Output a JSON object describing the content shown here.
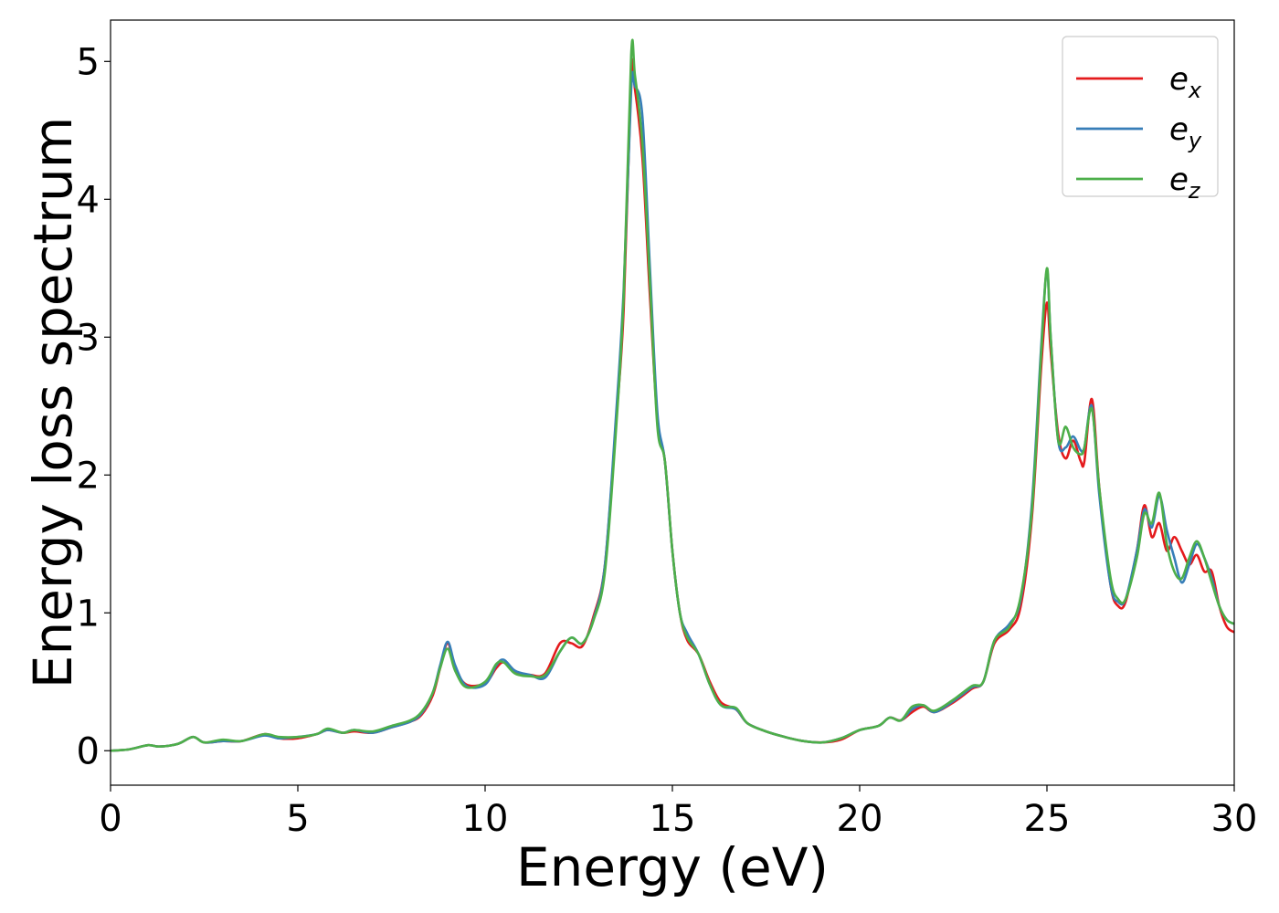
{
  "chart_data": {
    "type": "line",
    "title": "",
    "xlabel": "Energy (eV)",
    "ylabel": "Energy loss spectrum",
    "xlim": [
      0,
      30
    ],
    "ylim": [
      -0.25,
      5.3
    ],
    "xticks": [
      0,
      5,
      10,
      15,
      20,
      25,
      30
    ],
    "yticks": [
      0,
      1,
      2,
      3,
      4,
      5
    ],
    "grid": false,
    "legend_position": "top-right",
    "series": [
      {
        "name": "e_x",
        "legend_base": "e",
        "legend_sub": "x",
        "color": "#e41a1c",
        "points": [
          [
            0,
            0
          ],
          [
            0.5,
            0.01
          ],
          [
            1,
            0.04
          ],
          [
            1.3,
            0.03
          ],
          [
            1.8,
            0.05
          ],
          [
            2.2,
            0.1
          ],
          [
            2.5,
            0.06
          ],
          [
            3,
            0.07
          ],
          [
            3.5,
            0.07
          ],
          [
            4.1,
            0.12
          ],
          [
            4.5,
            0.09
          ],
          [
            5,
            0.09
          ],
          [
            5.5,
            0.12
          ],
          [
            5.8,
            0.15
          ],
          [
            6.2,
            0.13
          ],
          [
            6.5,
            0.14
          ],
          [
            7,
            0.13
          ],
          [
            7.5,
            0.17
          ],
          [
            8,
            0.21
          ],
          [
            8.3,
            0.26
          ],
          [
            8.6,
            0.4
          ],
          [
            8.8,
            0.6
          ],
          [
            9.0,
            0.78
          ],
          [
            9.2,
            0.6
          ],
          [
            9.5,
            0.48
          ],
          [
            10,
            0.49
          ],
          [
            10.3,
            0.6
          ],
          [
            10.5,
            0.64
          ],
          [
            10.8,
            0.57
          ],
          [
            11.2,
            0.55
          ],
          [
            11.6,
            0.56
          ],
          [
            12,
            0.78
          ],
          [
            12.3,
            0.78
          ],
          [
            12.6,
            0.76
          ],
          [
            12.9,
            0.98
          ],
          [
            13.2,
            1.35
          ],
          [
            13.5,
            2.4
          ],
          [
            13.7,
            3.2
          ],
          [
            13.9,
            4.9
          ],
          [
            14.0,
            4.8
          ],
          [
            14.2,
            4.3
          ],
          [
            14.4,
            3.3
          ],
          [
            14.6,
            2.4
          ],
          [
            14.8,
            2.1
          ],
          [
            15.0,
            1.45
          ],
          [
            15.2,
            1.0
          ],
          [
            15.4,
            0.8
          ],
          [
            15.7,
            0.7
          ],
          [
            16,
            0.5
          ],
          [
            16.3,
            0.35
          ],
          [
            16.7,
            0.3
          ],
          [
            17,
            0.2
          ],
          [
            17.5,
            0.14
          ],
          [
            18,
            0.1
          ],
          [
            18.5,
            0.07
          ],
          [
            19,
            0.06
          ],
          [
            19.5,
            0.08
          ],
          [
            20,
            0.15
          ],
          [
            20.5,
            0.18
          ],
          [
            20.8,
            0.24
          ],
          [
            21.1,
            0.22
          ],
          [
            21.4,
            0.28
          ],
          [
            21.7,
            0.32
          ],
          [
            22,
            0.28
          ],
          [
            22.5,
            0.35
          ],
          [
            23,
            0.45
          ],
          [
            23.3,
            0.5
          ],
          [
            23.6,
            0.78
          ],
          [
            24,
            0.88
          ],
          [
            24.3,
            1.05
          ],
          [
            24.6,
            1.7
          ],
          [
            24.85,
            2.8
          ],
          [
            25.0,
            3.25
          ],
          [
            25.1,
            2.9
          ],
          [
            25.3,
            2.3
          ],
          [
            25.5,
            2.12
          ],
          [
            25.7,
            2.25
          ],
          [
            25.9,
            2.1
          ],
          [
            26.0,
            2.1
          ],
          [
            26.2,
            2.55
          ],
          [
            26.4,
            1.9
          ],
          [
            26.7,
            1.2
          ],
          [
            26.9,
            1.05
          ],
          [
            27.1,
            1.08
          ],
          [
            27.4,
            1.45
          ],
          [
            27.6,
            1.78
          ],
          [
            27.8,
            1.55
          ],
          [
            28.0,
            1.65
          ],
          [
            28.2,
            1.45
          ],
          [
            28.4,
            1.55
          ],
          [
            28.6,
            1.45
          ],
          [
            28.8,
            1.35
          ],
          [
            29.0,
            1.42
          ],
          [
            29.2,
            1.3
          ],
          [
            29.4,
            1.3
          ],
          [
            29.6,
            1.05
          ],
          [
            29.8,
            0.9
          ],
          [
            30,
            0.86
          ]
        ]
      },
      {
        "name": "e_y",
        "legend_base": "e",
        "legend_sub": "y",
        "color": "#377eb8",
        "points": [
          [
            0,
            0
          ],
          [
            0.5,
            0.01
          ],
          [
            1,
            0.04
          ],
          [
            1.3,
            0.03
          ],
          [
            1.8,
            0.05
          ],
          [
            2.2,
            0.1
          ],
          [
            2.5,
            0.06
          ],
          [
            3,
            0.07
          ],
          [
            3.5,
            0.07
          ],
          [
            4.1,
            0.11
          ],
          [
            4.5,
            0.09
          ],
          [
            5,
            0.1
          ],
          [
            5.5,
            0.12
          ],
          [
            5.8,
            0.15
          ],
          [
            6.2,
            0.13
          ],
          [
            6.5,
            0.15
          ],
          [
            7,
            0.13
          ],
          [
            7.5,
            0.17
          ],
          [
            8,
            0.21
          ],
          [
            8.3,
            0.27
          ],
          [
            8.6,
            0.42
          ],
          [
            8.8,
            0.62
          ],
          [
            9.0,
            0.79
          ],
          [
            9.2,
            0.62
          ],
          [
            9.5,
            0.47
          ],
          [
            10,
            0.48
          ],
          [
            10.3,
            0.62
          ],
          [
            10.5,
            0.66
          ],
          [
            10.8,
            0.58
          ],
          [
            11.2,
            0.55
          ],
          [
            11.6,
            0.53
          ],
          [
            12,
            0.72
          ],
          [
            12.3,
            0.82
          ],
          [
            12.6,
            0.78
          ],
          [
            12.9,
            0.96
          ],
          [
            13.2,
            1.35
          ],
          [
            13.5,
            2.45
          ],
          [
            13.7,
            3.35
          ],
          [
            13.9,
            4.8
          ],
          [
            14.0,
            4.82
          ],
          [
            14.2,
            4.6
          ],
          [
            14.4,
            3.5
          ],
          [
            14.6,
            2.45
          ],
          [
            14.8,
            2.1
          ],
          [
            15.0,
            1.45
          ],
          [
            15.2,
            1.0
          ],
          [
            15.4,
            0.85
          ],
          [
            15.7,
            0.7
          ],
          [
            16,
            0.48
          ],
          [
            16.3,
            0.33
          ],
          [
            16.7,
            0.3
          ],
          [
            17,
            0.2
          ],
          [
            17.5,
            0.14
          ],
          [
            18,
            0.1
          ],
          [
            18.5,
            0.07
          ],
          [
            19,
            0.06
          ],
          [
            19.5,
            0.09
          ],
          [
            20,
            0.15
          ],
          [
            20.5,
            0.18
          ],
          [
            20.8,
            0.24
          ],
          [
            21.1,
            0.22
          ],
          [
            21.4,
            0.3
          ],
          [
            21.7,
            0.33
          ],
          [
            22,
            0.28
          ],
          [
            22.5,
            0.36
          ],
          [
            23,
            0.46
          ],
          [
            23.3,
            0.5
          ],
          [
            23.6,
            0.8
          ],
          [
            24,
            0.92
          ],
          [
            24.3,
            1.1
          ],
          [
            24.6,
            1.8
          ],
          [
            24.85,
            2.95
          ],
          [
            25.0,
            3.48
          ],
          [
            25.1,
            3.0
          ],
          [
            25.3,
            2.25
          ],
          [
            25.5,
            2.2
          ],
          [
            25.7,
            2.28
          ],
          [
            25.9,
            2.18
          ],
          [
            26.0,
            2.2
          ],
          [
            26.2,
            2.5
          ],
          [
            26.4,
            1.85
          ],
          [
            26.7,
            1.2
          ],
          [
            26.9,
            1.08
          ],
          [
            27.1,
            1.1
          ],
          [
            27.4,
            1.45
          ],
          [
            27.6,
            1.75
          ],
          [
            27.8,
            1.62
          ],
          [
            28.0,
            1.85
          ],
          [
            28.2,
            1.6
          ],
          [
            28.4,
            1.4
          ],
          [
            28.6,
            1.22
          ],
          [
            28.8,
            1.35
          ],
          [
            29.0,
            1.5
          ],
          [
            29.2,
            1.4
          ],
          [
            29.4,
            1.25
          ],
          [
            29.6,
            1.05
          ],
          [
            29.8,
            0.95
          ],
          [
            30,
            0.92
          ]
        ]
      },
      {
        "name": "e_z",
        "legend_base": "e",
        "legend_sub": "z",
        "color": "#4daf4a",
        "points": [
          [
            0,
            0
          ],
          [
            0.5,
            0.01
          ],
          [
            1,
            0.04
          ],
          [
            1.3,
            0.03
          ],
          [
            1.8,
            0.05
          ],
          [
            2.2,
            0.1
          ],
          [
            2.5,
            0.06
          ],
          [
            3,
            0.08
          ],
          [
            3.5,
            0.07
          ],
          [
            4.1,
            0.12
          ],
          [
            4.5,
            0.1
          ],
          [
            5,
            0.1
          ],
          [
            5.5,
            0.12
          ],
          [
            5.8,
            0.16
          ],
          [
            6.2,
            0.13
          ],
          [
            6.5,
            0.15
          ],
          [
            7,
            0.14
          ],
          [
            7.5,
            0.18
          ],
          [
            8,
            0.22
          ],
          [
            8.3,
            0.28
          ],
          [
            8.6,
            0.42
          ],
          [
            8.8,
            0.6
          ],
          [
            9.0,
            0.74
          ],
          [
            9.2,
            0.58
          ],
          [
            9.5,
            0.46
          ],
          [
            10,
            0.5
          ],
          [
            10.3,
            0.63
          ],
          [
            10.5,
            0.64
          ],
          [
            10.8,
            0.56
          ],
          [
            11.2,
            0.54
          ],
          [
            11.6,
            0.55
          ],
          [
            12,
            0.72
          ],
          [
            12.3,
            0.82
          ],
          [
            12.6,
            0.78
          ],
          [
            12.9,
            0.95
          ],
          [
            13.2,
            1.3
          ],
          [
            13.5,
            2.35
          ],
          [
            13.7,
            3.3
          ],
          [
            13.9,
            5.05
          ],
          [
            14.0,
            4.9
          ],
          [
            14.2,
            4.4
          ],
          [
            14.4,
            3.4
          ],
          [
            14.6,
            2.35
          ],
          [
            14.8,
            2.1
          ],
          [
            15.0,
            1.45
          ],
          [
            15.2,
            1.0
          ],
          [
            15.4,
            0.82
          ],
          [
            15.7,
            0.7
          ],
          [
            16,
            0.48
          ],
          [
            16.3,
            0.33
          ],
          [
            16.7,
            0.31
          ],
          [
            17,
            0.2
          ],
          [
            17.5,
            0.14
          ],
          [
            18,
            0.1
          ],
          [
            18.5,
            0.07
          ],
          [
            19,
            0.06
          ],
          [
            19.5,
            0.09
          ],
          [
            20,
            0.15
          ],
          [
            20.5,
            0.18
          ],
          [
            20.8,
            0.24
          ],
          [
            21.1,
            0.22
          ],
          [
            21.4,
            0.32
          ],
          [
            21.7,
            0.33
          ],
          [
            22,
            0.29
          ],
          [
            22.5,
            0.37
          ],
          [
            23,
            0.47
          ],
          [
            23.3,
            0.5
          ],
          [
            23.6,
            0.8
          ],
          [
            24,
            0.9
          ],
          [
            24.3,
            1.12
          ],
          [
            24.6,
            1.75
          ],
          [
            24.85,
            2.9
          ],
          [
            25.0,
            3.5
          ],
          [
            25.1,
            3.0
          ],
          [
            25.3,
            2.25
          ],
          [
            25.5,
            2.35
          ],
          [
            25.7,
            2.2
          ],
          [
            25.9,
            2.15
          ],
          [
            26.0,
            2.2
          ],
          [
            26.2,
            2.48
          ],
          [
            26.4,
            1.9
          ],
          [
            26.7,
            1.25
          ],
          [
            26.9,
            1.1
          ],
          [
            27.1,
            1.1
          ],
          [
            27.4,
            1.4
          ],
          [
            27.6,
            1.72
          ],
          [
            27.8,
            1.65
          ],
          [
            28.0,
            1.87
          ],
          [
            28.2,
            1.5
          ],
          [
            28.4,
            1.3
          ],
          [
            28.6,
            1.25
          ],
          [
            28.8,
            1.4
          ],
          [
            29.0,
            1.52
          ],
          [
            29.2,
            1.4
          ],
          [
            29.4,
            1.22
          ],
          [
            29.6,
            1.05
          ],
          [
            29.8,
            0.95
          ],
          [
            30,
            0.92
          ]
        ]
      }
    ]
  }
}
